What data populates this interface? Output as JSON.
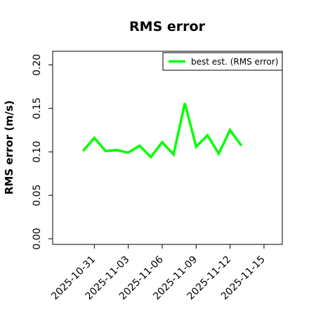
{
  "chart_data": {
    "type": "line",
    "title": "RMS error",
    "xlabel": "",
    "ylabel": "RMS error (m/s)",
    "ylim": [
      0,
      0.21
    ],
    "yticks": [
      "0.00",
      "0.05",
      "0.10",
      "0.15",
      "0.20"
    ],
    "xlim": [
      "2025-10-28",
      "2025-11-16"
    ],
    "xticks": [
      "2025-10-31",
      "2025-11-03",
      "2025-11-06",
      "2025-11-09",
      "2025-11-12",
      "2025-11-15"
    ],
    "highlighted_xtick": "2025-11-06",
    "highlight_color": "#228b22",
    "grid": false,
    "legend_position": "top-right",
    "series": [
      {
        "name": "best est. (RMS error)",
        "color": "#00ff00",
        "x": [
          "2025-10-30",
          "2025-10-31",
          "2025-11-01",
          "2025-11-02",
          "2025-11-03",
          "2025-11-04",
          "2025-11-05",
          "2025-11-06",
          "2025-11-07",
          "2025-11-08",
          "2025-11-09",
          "2025-11-10",
          "2025-11-11",
          "2025-11-12",
          "2025-11-13"
        ],
        "y": [
          0.101,
          0.116,
          0.101,
          0.102,
          0.099,
          0.107,
          0.094,
          0.111,
          0.097,
          0.156,
          0.106,
          0.119,
          0.098,
          0.125,
          0.107
        ]
      }
    ]
  }
}
